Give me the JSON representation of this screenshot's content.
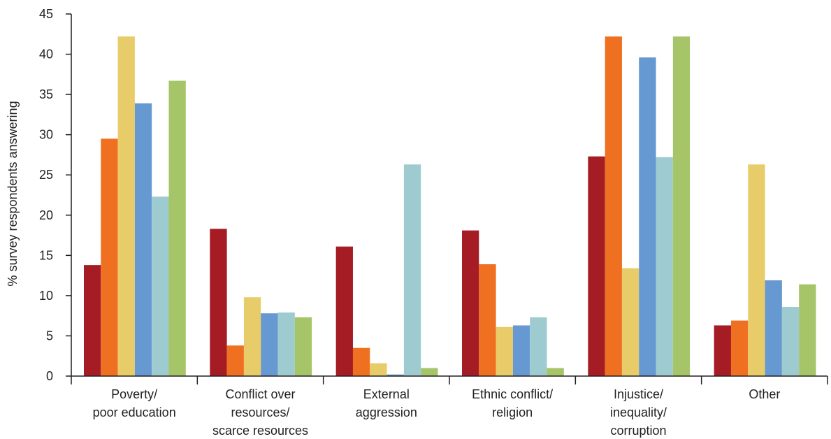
{
  "chart_data": {
    "type": "bar",
    "title": "",
    "xlabel": "",
    "ylabel": "% survey respondents answering",
    "ylim": [
      0,
      45
    ],
    "yticks": [
      0,
      5,
      10,
      15,
      20,
      25,
      30,
      35,
      40,
      45
    ],
    "grid": false,
    "categories": [
      [
        "Poverty/",
        "poor education"
      ],
      [
        "Conflict over",
        "resources/",
        "scarce resources"
      ],
      [
        "External",
        "aggression"
      ],
      [
        "Ethnic conflict/",
        "religion"
      ],
      [
        "Injustice/",
        "inequality/",
        "corruption"
      ],
      [
        "Other"
      ]
    ],
    "series": [
      {
        "color": "#a51c24",
        "values": [
          13.8,
          18.3,
          16.1,
          18.1,
          27.3,
          6.3
        ]
      },
      {
        "color": "#f07022",
        "values": [
          29.5,
          3.8,
          3.5,
          13.9,
          42.2,
          6.9
        ]
      },
      {
        "color": "#e8cc6a",
        "values": [
          42.2,
          9.8,
          1.6,
          6.1,
          13.4,
          26.3
        ]
      },
      {
        "color": "#6699d2",
        "values": [
          33.9,
          7.8,
          0.2,
          6.3,
          39.6,
          11.9
        ]
      },
      {
        "color": "#9ecbd0",
        "values": [
          22.3,
          7.9,
          26.3,
          7.3,
          27.2,
          8.6
        ]
      },
      {
        "color": "#a6c468",
        "values": [
          36.7,
          7.3,
          1.0,
          1.0,
          42.2,
          11.4
        ]
      }
    ]
  }
}
